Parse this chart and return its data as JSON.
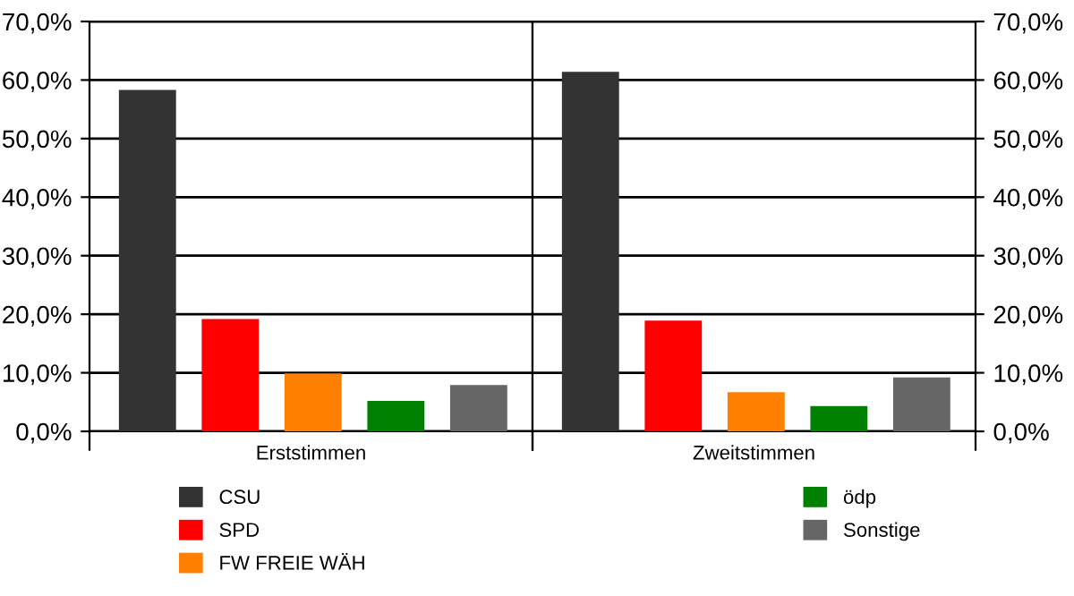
{
  "chart_data": [
    {
      "type": "bar",
      "xlabel": "Erststimmen",
      "categories": [
        null,
        null,
        null,
        null,
        null
      ],
      "series": [
        {
          "name": "CSU",
          "color": "#333333",
          "values": [
            58.3,
            null,
            null,
            null,
            null
          ]
        },
        {
          "name": "SPD",
          "color": "#ff0000",
          "values": [
            null,
            19.2,
            null,
            null,
            null
          ]
        },
        {
          "name": "FW FREIE WÄH",
          "color": "#ff8000",
          "values": [
            null,
            null,
            9.9,
            null,
            null
          ]
        },
        {
          "name": "ödp",
          "color": "#008000",
          "values": [
            null,
            null,
            null,
            5.2,
            null
          ]
        },
        {
          "name": "Sonstige",
          "color": "#666666",
          "values": [
            null,
            null,
            null,
            null,
            7.9
          ]
        }
      ],
      "ylim": [
        0,
        70
      ],
      "yticks": [
        {
          "value": 0,
          "label": "0,0%"
        },
        {
          "value": 10,
          "label": "10,0%"
        },
        {
          "value": 20,
          "label": "20,0%"
        },
        {
          "value": 30,
          "label": "30,0%"
        },
        {
          "value": 40,
          "label": "40,0%"
        },
        {
          "value": 50,
          "label": "50,0%"
        },
        {
          "value": 60,
          "label": "60,0%"
        },
        {
          "value": 70,
          "label": "70,0%"
        }
      ],
      "grid": "y",
      "legend": "bottom"
    },
    {
      "type": "bar",
      "xlabel": "Zweitstimmen",
      "categories": [
        null,
        null,
        null,
        null,
        null
      ],
      "series": [
        {
          "color": "#333333",
          "values": [
            61.4,
            null,
            null,
            null,
            null
          ]
        },
        {
          "color": "#ff0000",
          "values": [
            null,
            18.9,
            null,
            null,
            null
          ]
        },
        {
          "color": "#ff8000",
          "values": [
            null,
            null,
            6.7,
            null,
            null
          ]
        },
        {
          "color": "#008000",
          "values": [
            null,
            null,
            null,
            4.3,
            null
          ]
        },
        {
          "color": "#666666",
          "values": [
            null,
            null,
            null,
            null,
            9.2
          ]
        }
      ],
      "ylim": [
        0,
        70
      ],
      "yticks": [
        {
          "value": 0,
          "label": "0,0%"
        },
        {
          "value": 10,
          "label": "10,0%"
        },
        {
          "value": 20,
          "label": "20,0%"
        },
        {
          "value": 30,
          "label": "30,0%"
        },
        {
          "value": 40,
          "label": "40,0%"
        },
        {
          "value": 50,
          "label": "50,0%"
        },
        {
          "value": 60,
          "label": "60,0%"
        },
        {
          "value": 70,
          "label": "70,0%"
        }
      ],
      "grid": "y"
    }
  ]
}
